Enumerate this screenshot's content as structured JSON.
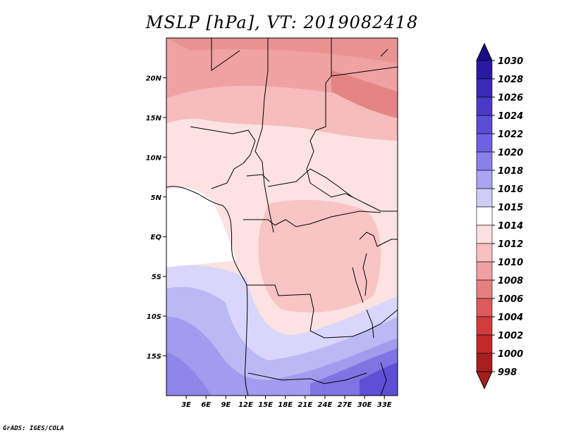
{
  "title": "MSLP [hPa], VT: 2019082418",
  "map": {
    "lon_range": [
      0,
      35
    ],
    "lat_range": [
      -20,
      25
    ],
    "lat_ticks": [
      "20N",
      "15N",
      "10N",
      "5N",
      "EQ",
      "5S",
      "10S",
      "15S"
    ],
    "lat_values": [
      20,
      15,
      10,
      5,
      0,
      -5,
      -10,
      -15
    ],
    "lon_ticks": [
      "3E",
      "6E",
      "9E",
      "12E",
      "15E",
      "18E",
      "21E",
      "24E",
      "27E",
      "30E",
      "33E"
    ],
    "lon_values": [
      3,
      6,
      9,
      12,
      15,
      18,
      21,
      24,
      27,
      30,
      33
    ]
  },
  "colorbar": {
    "labels": [
      "1030",
      "1028",
      "1026",
      "1024",
      "1022",
      "1020",
      "1018",
      "1016",
      "1015",
      "1014",
      "1012",
      "1010",
      "1008",
      "1006",
      "1004",
      "1002",
      "1000",
      "998"
    ],
    "colors": [
      "#1a0a8c",
      "#2a1aa0",
      "#3a2ab4",
      "#4a3ac6",
      "#5a4ed4",
      "#6e62e0",
      "#8a80ea",
      "#aaa4f2",
      "#cfcdf8",
      "#ffffff",
      "#fde0e0",
      "#f8c0c0",
      "#f0a0a0",
      "#e68080",
      "#dc5a5a",
      "#d03c3c",
      "#c02a2a",
      "#a81e1e"
    ]
  },
  "credit": "GrADS: IGES/COLA"
}
